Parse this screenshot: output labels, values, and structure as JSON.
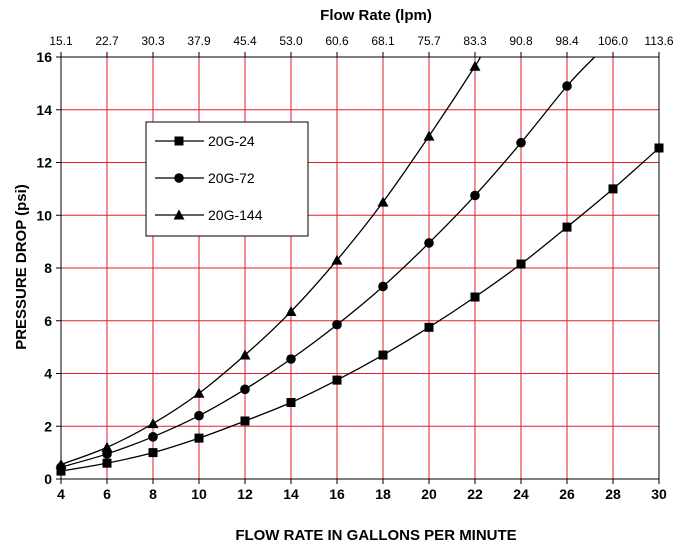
{
  "chart_data": {
    "type": "line",
    "title": "",
    "xlabel": "FLOW RATE IN GALLONS PER MINUTE",
    "ylabel": "PRESSURE DROP (psi)",
    "x2label": "Flow Rate (lpm)",
    "xlim": [
      4,
      30
    ],
    "ylim": [
      0,
      16
    ],
    "xticks": [
      4,
      6,
      8,
      10,
      12,
      14,
      16,
      18,
      20,
      22,
      24,
      26,
      28,
      30
    ],
    "yticks": [
      0,
      2,
      4,
      6,
      8,
      10,
      12,
      14,
      16
    ],
    "x2ticks": [
      "15.1",
      "22.7",
      "30.3",
      "37.9",
      "45.4",
      "53.0",
      "60.6",
      "68.1",
      "75.7",
      "83.3",
      "90.8",
      "98.4",
      "106.0",
      "113.6"
    ],
    "grid": true,
    "grid_color": "#e0202a",
    "line_color": "#000000",
    "legend_position": "upper-left",
    "series": [
      {
        "name": "20G-24",
        "marker": "square",
        "x": [
          4,
          6,
          8,
          10,
          12,
          14,
          16,
          18,
          20,
          22,
          24,
          26,
          28,
          30
        ],
        "y": [
          0.3,
          0.6,
          1.0,
          1.55,
          2.2,
          2.9,
          3.75,
          4.7,
          5.75,
          6.9,
          8.15,
          9.55,
          11.0,
          12.55
        ]
      },
      {
        "name": "20G-72",
        "marker": "circle",
        "x": [
          4,
          6,
          8,
          10,
          12,
          14,
          16,
          18,
          20,
          22,
          24,
          26
        ],
        "y": [
          0.45,
          0.95,
          1.6,
          2.4,
          3.4,
          4.55,
          5.85,
          7.3,
          8.95,
          10.75,
          12.75,
          14.9
        ],
        "curve_end": [
          27.2,
          16
        ]
      },
      {
        "name": "20G-144",
        "marker": "triangle",
        "x": [
          4,
          6,
          8,
          10,
          12,
          14,
          16,
          18,
          20,
          22
        ],
        "y": [
          0.55,
          1.2,
          2.1,
          3.25,
          4.7,
          6.35,
          8.3,
          10.5,
          13.0,
          15.65
        ],
        "curve_end": [
          22.2,
          16
        ]
      }
    ]
  }
}
